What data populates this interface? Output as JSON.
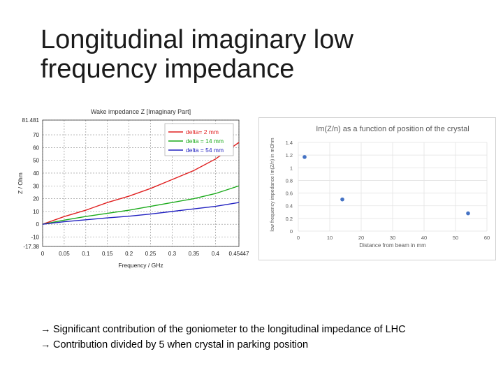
{
  "slide": {
    "title_line1": "Longitudinal imaginary low",
    "title_line2": "frequency impedance"
  },
  "bullets": [
    {
      "arrow": "→",
      "text": "Significant contribution of the goniometer to the longitudinal impedance of LHC"
    },
    {
      "arrow": "→",
      "text": "Contribution divided by 5 when crystal in parking position"
    }
  ],
  "chart_data": [
    {
      "type": "line",
      "title": "Wake impedance Z [Imaginary Part]",
      "xlabel": "Frequency / GHz",
      "ylabel": "Z / Ohm",
      "xlim": [
        0,
        0.45447
      ],
      "ylim": [
        -17.38,
        81.481
      ],
      "x_ticks": [
        "0",
        "0.05",
        "0.1",
        "0.15",
        "0.2",
        "0.25",
        "0.3",
        "0.35",
        "0.4",
        "0.45447"
      ],
      "y_ticks": [
        "81.481",
        "70",
        "60",
        "50",
        "40",
        "30",
        "20",
        "10",
        "0",
        "-10",
        "-17.38"
      ],
      "y_tick_values": [
        81.481,
        70,
        60,
        50,
        40,
        30,
        20,
        10,
        0,
        -10,
        -17.38
      ],
      "grid": true,
      "legend_position": "top-right",
      "colors": {
        "red": "#e02020",
        "green": "#1aaa1a",
        "blue": "#2020c0"
      },
      "x": [
        0,
        0.05,
        0.1,
        0.15,
        0.2,
        0.25,
        0.3,
        0.35,
        0.4,
        0.45447
      ],
      "series": [
        {
          "name": "delta= 2 mm",
          "color": "#e02020",
          "values": [
            0,
            6,
            11,
            17,
            22,
            28,
            35,
            42,
            51,
            64
          ]
        },
        {
          "name": "delta = 14 mm",
          "color": "#1aaa1a",
          "values": [
            0,
            3.2,
            6.1,
            8.5,
            11,
            14,
            17,
            20,
            24,
            30
          ]
        },
        {
          "name": "delta = 54 mm",
          "color": "#2020c0",
          "values": [
            0,
            2,
            3.5,
            5,
            6.3,
            8,
            10,
            12,
            14,
            17
          ]
        }
      ]
    },
    {
      "type": "scatter",
      "title": "Im(Z/n) as a function of position of the crystal",
      "xlabel": "Distance from beam in mm",
      "ylabel": "low frequency impedance Im(Z/n) in mOhm",
      "xlim": [
        0,
        60
      ],
      "ylim": [
        0,
        1.4
      ],
      "x_ticks": [
        "0",
        "10",
        "20",
        "30",
        "40",
        "50",
        "60"
      ],
      "x_tick_values": [
        0,
        10,
        20,
        30,
        40,
        50,
        60
      ],
      "y_ticks": [
        "0",
        "0.2",
        "0.4",
        "0.6",
        "0.8",
        "1",
        "1.2",
        "1.4"
      ],
      "y_tick_values": [
        0,
        0.2,
        0.4,
        0.6,
        0.8,
        1,
        1.2,
        1.4
      ],
      "grid": true,
      "marker_color": "#4472c4",
      "points": [
        {
          "x": 2,
          "y": 1.17
        },
        {
          "x": 14,
          "y": 0.5
        },
        {
          "x": 54,
          "y": 0.28
        }
      ]
    }
  ]
}
